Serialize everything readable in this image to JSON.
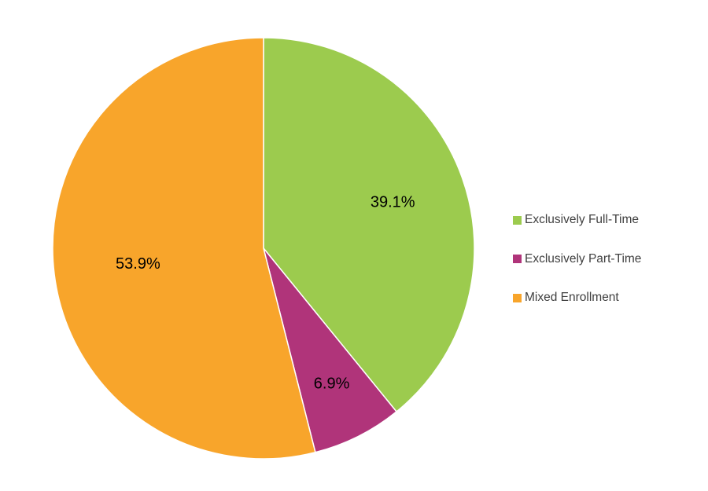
{
  "chart_data": {
    "type": "pie",
    "title": "",
    "categories": [
      "Exclusively Full-Time",
      "Exclusively Part-Time",
      "Mixed Enrollment"
    ],
    "values": [
      39.1,
      6.9,
      53.9
    ],
    "slices": [
      {
        "label": "Exclusively Full-Time",
        "value": 39.1,
        "data_label": "39.1%",
        "color": "#9CCB4E",
        "label_r_frac": 0.65
      },
      {
        "label": "Exclusively Part-Time",
        "value": 6.9,
        "data_label": "6.9%",
        "color": "#B0347A",
        "label_r_frac": 0.72
      },
      {
        "label": "Mixed Enrollment",
        "value": 53.9,
        "data_label": "53.9%",
        "color": "#F8A52B",
        "label_r_frac": 0.6
      }
    ],
    "start_angle_deg": 0,
    "direction": "clockwise",
    "legend_position": "right",
    "data_label_color": "#000000",
    "legend_text_color": "#404040",
    "slice_separator_color": "#FFFFFF"
  }
}
